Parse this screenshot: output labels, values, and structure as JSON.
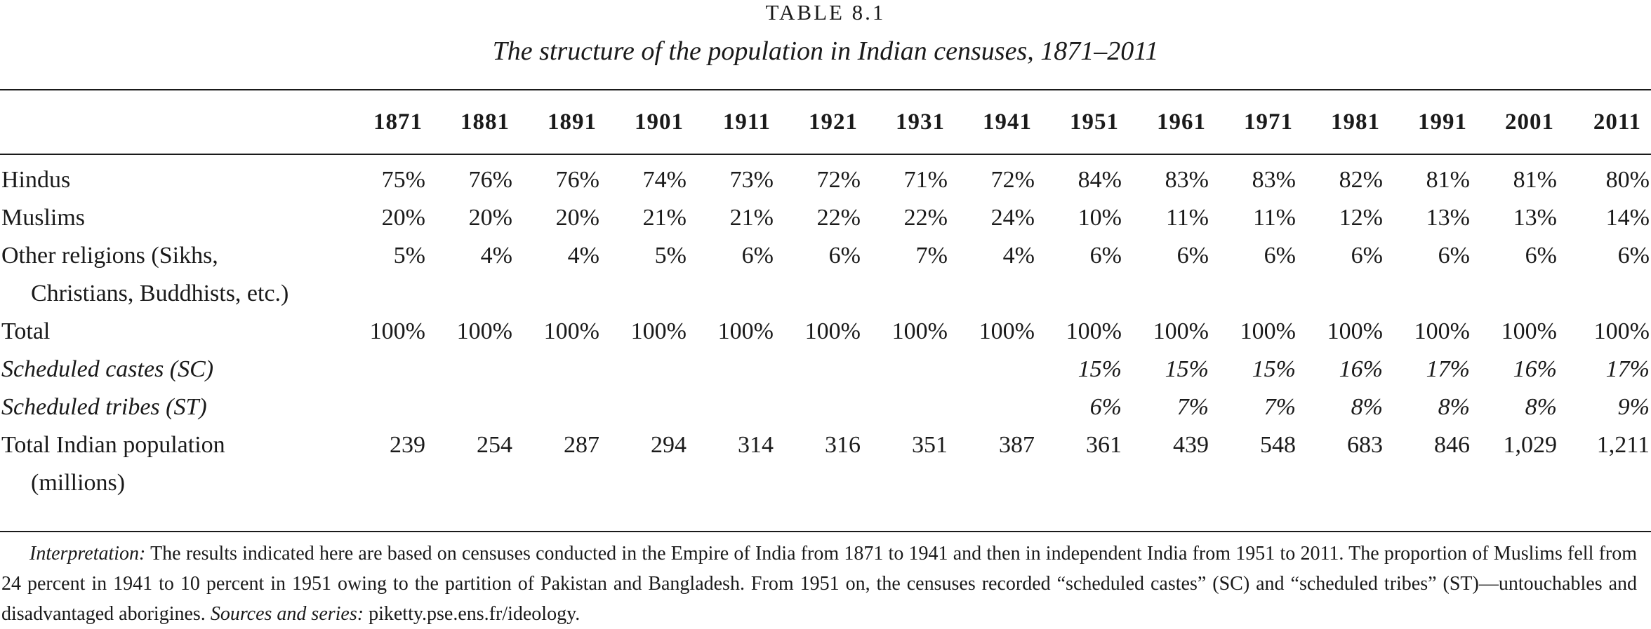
{
  "table_label": "TABLE 8.1",
  "table_title": "The structure of the population in Indian censuses, 1871–2011",
  "chart_data": {
    "type": "table",
    "title": "The structure of the population in Indian censuses, 1871–2011",
    "columns": [
      "1871",
      "1881",
      "1891",
      "1901",
      "1911",
      "1921",
      "1931",
      "1941",
      "1951",
      "1961",
      "1971",
      "1981",
      "1991",
      "2001",
      "2011"
    ],
    "rows": [
      {
        "label": "Hindus",
        "label_cont": "",
        "values": [
          "75%",
          "76%",
          "76%",
          "74%",
          "73%",
          "72%",
          "71%",
          "72%",
          "84%",
          "83%",
          "83%",
          "82%",
          "81%",
          "81%",
          "80%"
        ]
      },
      {
        "label": "Muslims",
        "label_cont": "",
        "values": [
          "20%",
          "20%",
          "20%",
          "21%",
          "21%",
          "22%",
          "22%",
          "24%",
          "10%",
          "11%",
          "11%",
          "12%",
          "13%",
          "13%",
          "14%"
        ]
      },
      {
        "label": "Other religions (Sikhs,",
        "label_cont": "Christians, Buddhists, etc.)",
        "values": [
          "5%",
          "4%",
          "4%",
          "5%",
          "6%",
          "6%",
          "7%",
          "4%",
          "6%",
          "6%",
          "6%",
          "6%",
          "6%",
          "6%",
          "6%"
        ]
      },
      {
        "label": "Total",
        "label_cont": "",
        "values": [
          "100%",
          "100%",
          "100%",
          "100%",
          "100%",
          "100%",
          "100%",
          "100%",
          "100%",
          "100%",
          "100%",
          "100%",
          "100%",
          "100%",
          "100%"
        ]
      },
      {
        "label": "Scheduled castes (SC)",
        "label_cont": "",
        "italic": true,
        "values": [
          "",
          "",
          "",
          "",
          "",
          "",
          "",
          "",
          "15%",
          "15%",
          "15%",
          "16%",
          "17%",
          "16%",
          "17%"
        ]
      },
      {
        "label": "Scheduled tribes (ST)",
        "label_cont": "",
        "italic": true,
        "values": [
          "",
          "",
          "",
          "",
          "",
          "",
          "",
          "",
          "6%",
          "7%",
          "7%",
          "8%",
          "8%",
          "8%",
          "9%"
        ]
      },
      {
        "label": "Total Indian population",
        "label_cont": "(millions)",
        "values": [
          "239",
          "254",
          "287",
          "294",
          "314",
          "316",
          "351",
          "387",
          "361",
          "439",
          "548",
          "683",
          "846",
          "1,029",
          "1,211"
        ]
      }
    ]
  },
  "note": {
    "lead_label": "Interpretation:",
    "body": " The results indicated here are based on censuses conducted in the Empire of India from 1871 to 1941 and then in independent India from 1951 to 2011. The proportion of Muslims fell from 24 percent in 1941 to 10 percent in 1951 owing to the partition of Pakistan and Bangladesh. From 1951 on, the censuses recorded “scheduled castes” (SC) and “scheduled tribes” (ST)—untouchables and disadvantaged aborigines. ",
    "sources_label": "Sources and series:",
    "sources_text": " piketty.pse.ens.fr/ideology."
  }
}
